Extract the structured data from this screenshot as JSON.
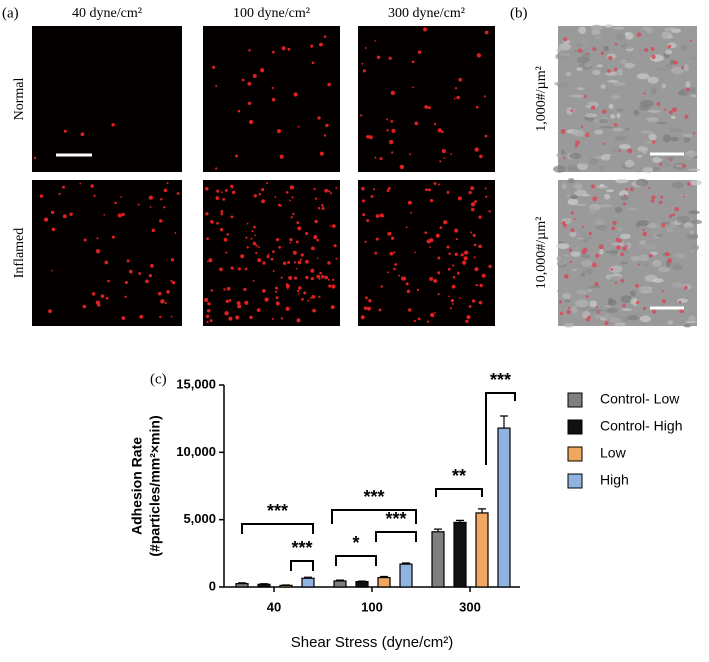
{
  "panel_a": {
    "label": "(a)",
    "columns": [
      "40 dyne/cm²",
      "100 dyne/cm²",
      "300 dyne/cm²"
    ],
    "rows": [
      "Normal",
      "Inflamed"
    ]
  },
  "panel_b": {
    "label": "(b)",
    "rows": [
      "1,000#/µm²",
      "10,000#/µm²"
    ]
  },
  "chart_data": {
    "type": "bar",
    "label": "(c)",
    "ylabel": [
      "Adhesion Rate",
      "(#particles/mm²×min)"
    ],
    "xlabel": "Shear Stress (dyne/cm²)",
    "categories": [
      "40",
      "100",
      "300"
    ],
    "series": [
      {
        "name": "Control- Low",
        "color": "#7f7f7f",
        "values": [
          250,
          450,
          4100
        ],
        "errors": [
          60,
          60,
          200
        ]
      },
      {
        "name": "Control- High",
        "color": "#111111",
        "values": [
          200,
          400,
          4800
        ],
        "errors": [
          40,
          40,
          150
        ]
      },
      {
        "name": "Low",
        "color": "#f0a860",
        "values": [
          120,
          700,
          5500
        ],
        "errors": [
          30,
          80,
          300
        ]
      },
      {
        "name": "High",
        "color": "#8fb4e0",
        "values": [
          650,
          1700,
          11800
        ],
        "errors": [
          80,
          80,
          900
        ]
      }
    ],
    "ylim": [
      0,
      15000
    ],
    "yticks": [
      0,
      {
        "value": 5000,
        "label": "5,000"
      },
      {
        "value": 10000,
        "label": "10,000"
      },
      {
        "value": 15000,
        "label": "15,000"
      }
    ],
    "significance": [
      "***",
      "***",
      "***",
      "*",
      "***",
      "**",
      "***"
    ]
  }
}
